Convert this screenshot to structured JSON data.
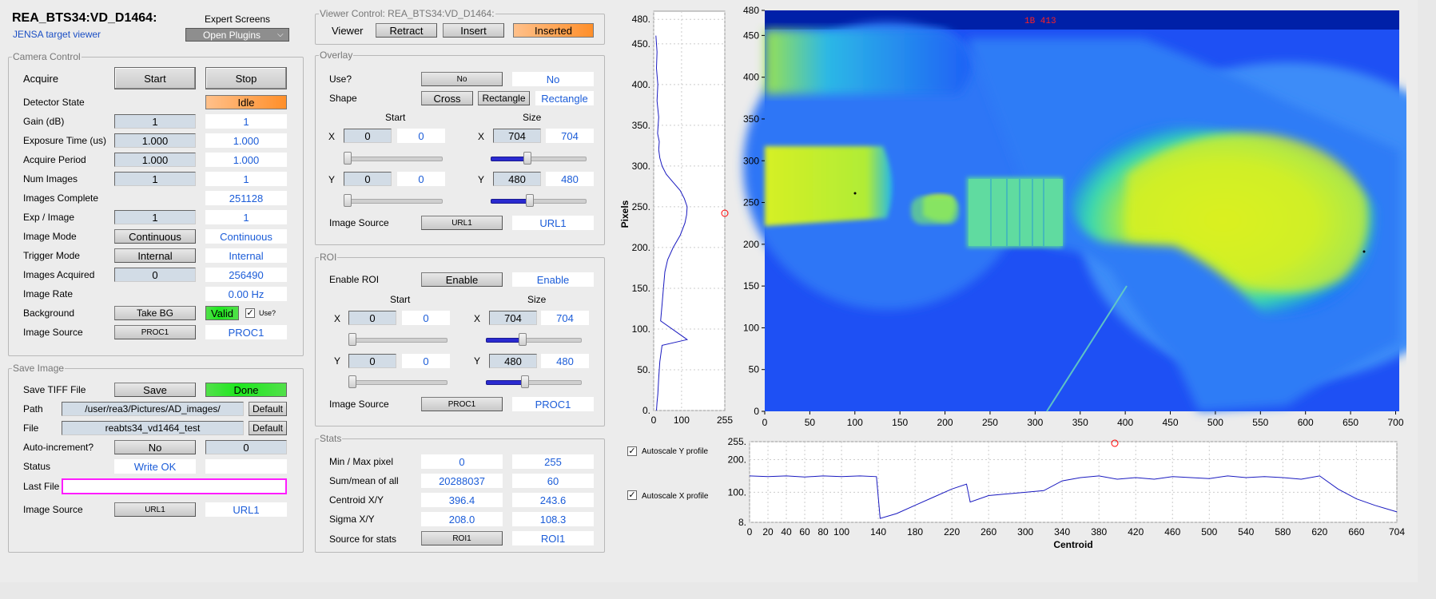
{
  "header": {
    "title": "REA_BTS34:VD_D1464:",
    "subtitle": "JENSA target viewer",
    "expert_label": "Expert Screens",
    "plugins_label": "Open Plugins"
  },
  "camera": {
    "legend": "Camera Control",
    "acquire_label": "Acquire",
    "start": "Start",
    "stop": "Stop",
    "detector_state_label": "Detector State",
    "detector_state": "Idle",
    "rows": [
      {
        "label": "Gain (dB)",
        "input": "1",
        "readback": "1"
      },
      {
        "label": "Exposure Time (us)",
        "input": "1.000",
        "readback": "1.000"
      },
      {
        "label": "Acquire Period",
        "input": "1.000",
        "readback": "1.000"
      },
      {
        "label": "Num Images",
        "input": "1",
        "readback": "1"
      },
      {
        "label": "Images Complete",
        "readback": "251128"
      },
      {
        "label": "Exp / Image",
        "input": "1",
        "readback": "1"
      },
      {
        "label": "Image Mode",
        "button": "Continuous",
        "readback": "Continuous"
      },
      {
        "label": "Trigger Mode",
        "button": "Internal",
        "readback": "Internal"
      },
      {
        "label": "Images Acquired",
        "input": "0",
        "readback": "256490"
      },
      {
        "label": "Image Rate",
        "readback": "0.00 Hz"
      }
    ],
    "background_label": "Background",
    "take_bg": "Take BG",
    "bg_status": "Valid",
    "use_label": "Use?",
    "source_label": "Image Source",
    "source_button": "PROC1",
    "source_value": "PROC1"
  },
  "save": {
    "legend": "Save Image",
    "tiff_label": "Save TIFF File",
    "save": "Save",
    "save_status": "Done",
    "path_label": "Path",
    "path": "/user/rea3/Pictures/AD_images/",
    "default": "Default",
    "file_label": "File",
    "file": "reabts34_vd1464_test",
    "autoinc_label": "Auto-increment?",
    "autoinc": "No",
    "autoinc_num": "0",
    "status_label": "Status",
    "status": "Write OK",
    "last_file_label": "Last File",
    "last_file": "",
    "source_label": "Image Source",
    "source_button": "URL1",
    "source_value": "URL1"
  },
  "viewer": {
    "legend": "Viewer Control: REA_BTS34:VD_D1464:",
    "viewer_label": "Viewer",
    "retract": "Retract",
    "insert": "Insert",
    "state": "Inserted"
  },
  "overlay": {
    "legend": "Overlay",
    "use_label": "Use?",
    "use_button": "No",
    "use_value": "No",
    "shape_label": "Shape",
    "cross": "Cross",
    "rectangle": "Rectangle",
    "shape_value": "Rectangle",
    "start_label": "Start",
    "size_label": "Size",
    "x": "X",
    "y": "Y",
    "start_x": "0",
    "start_x_rb": "0",
    "size_x": "704",
    "size_x_rb": "704",
    "start_y": "0",
    "start_y_rb": "0",
    "size_y": "480",
    "size_y_rb": "480",
    "slider_start_x": 0,
    "slider_size_x": 0.37,
    "slider_start_y": 0,
    "slider_size_y": 0.4,
    "source_label": "Image Source",
    "source_button": "URL1",
    "source_value": "URL1"
  },
  "roi": {
    "legend": "ROI",
    "enable_label": "Enable ROI",
    "enable_button": "Enable",
    "enable_value": "Enable",
    "start_label": "Start",
    "size_label": "Size",
    "x": "X",
    "y": "Y",
    "start_x": "0",
    "start_x_rb": "0",
    "size_x": "704",
    "size_x_rb": "704",
    "start_y": "0",
    "start_y_rb": "0",
    "size_y": "480",
    "size_y_rb": "480",
    "slider_start_x": 0,
    "slider_size_x": 0.37,
    "slider_start_y": 0,
    "slider_size_y": 0.4,
    "source_label": "Image Source",
    "source_button": "PROC1",
    "source_value": "PROC1"
  },
  "stats": {
    "legend": "Stats",
    "rows": [
      {
        "label": "Min / Max pixel",
        "a": "0",
        "b": "255"
      },
      {
        "label": "Sum/mean of all",
        "a": "20288037",
        "b": "60"
      },
      {
        "label": "Centroid X/Y",
        "a": "396.4",
        "b": "243.6"
      },
      {
        "label": "Sigma X/Y",
        "a": "208.0",
        "b": "108.3"
      }
    ],
    "source_label": "Source for stats",
    "source_button": "ROI1",
    "source_value": "ROI1"
  },
  "autoscale": {
    "y_label": "Autoscale Y profile",
    "x_label": "Autoscale X profile"
  },
  "image": {
    "overlay_text": "1B 413",
    "x_ticks": [
      "0",
      "50",
      "100",
      "150",
      "200",
      "250",
      "300",
      "350",
      "400",
      "450",
      "500",
      "550",
      "600",
      "650",
      "700"
    ],
    "y_ticks": [
      "480",
      "450",
      "400",
      "350",
      "300",
      "250",
      "200",
      "150",
      "100",
      "50",
      "0"
    ]
  },
  "colors": {
    "accent_blue": "#1b5cd8",
    "orange": "#ff8f2a",
    "green": "#1ee81e",
    "magenta": "#ff1cff"
  },
  "chart_data": [
    {
      "type": "line",
      "title": "",
      "ylabel": "Pixels",
      "xlim": [
        0,
        255
      ],
      "ylim": [
        0,
        490
      ],
      "x_ticks": [
        "0",
        "100",
        "255"
      ],
      "y_ticks": [
        "480.",
        "450.",
        "400.",
        "350.",
        "300.",
        "250.",
        "200.",
        "150.",
        "100.",
        "50.",
        "0."
      ],
      "orientation": "vertical-profile",
      "series": [
        {
          "x": [
            8,
            12,
            10,
            15,
            12,
            18,
            14,
            20,
            18,
            22,
            30,
            45,
            70,
            95,
            110,
            120,
            118,
            112,
            95,
            70,
            50,
            40,
            35,
            30,
            25,
            120,
            30,
            22,
            18,
            15,
            12,
            10
          ],
          "y": [
            460,
            440,
            420,
            400,
            380,
            360,
            340,
            330,
            320,
            310,
            300,
            290,
            280,
            270,
            260,
            250,
            240,
            230,
            215,
            200,
            185,
            170,
            150,
            130,
            110,
            87,
            80,
            60,
            40,
            20,
            10,
            0
          ]
        }
      ]
    },
    {
      "type": "line",
      "title": "",
      "xlabel": "Centroid",
      "xlim": [
        0,
        704
      ],
      "ylim": [
        8,
        255
      ],
      "x_ticks": [
        "0",
        "20",
        "40",
        "60",
        "80",
        "100",
        "140",
        "180",
        "220",
        "260",
        "300",
        "340",
        "380",
        "420",
        "460",
        "500",
        "540",
        "580",
        "620",
        "660",
        "704"
      ],
      "y_ticks": [
        "255.",
        "200.",
        "100.",
        "8."
      ],
      "orientation": "horizontal-profile",
      "series": [
        {
          "x": [
            0,
            20,
            40,
            60,
            80,
            100,
            120,
            138,
            142,
            160,
            180,
            200,
            220,
            236,
            240,
            260,
            280,
            300,
            320,
            340,
            360,
            380,
            400,
            420,
            440,
            460,
            480,
            500,
            520,
            540,
            560,
            580,
            600,
            620,
            640,
            660,
            680,
            704
          ],
          "y": [
            150,
            148,
            150,
            147,
            150,
            148,
            150,
            148,
            20,
            35,
            60,
            85,
            110,
            125,
            70,
            90,
            95,
            100,
            105,
            135,
            145,
            150,
            140,
            145,
            140,
            148,
            145,
            142,
            150,
            145,
            148,
            145,
            140,
            150,
            110,
            80,
            60,
            40
          ]
        }
      ]
    }
  ]
}
